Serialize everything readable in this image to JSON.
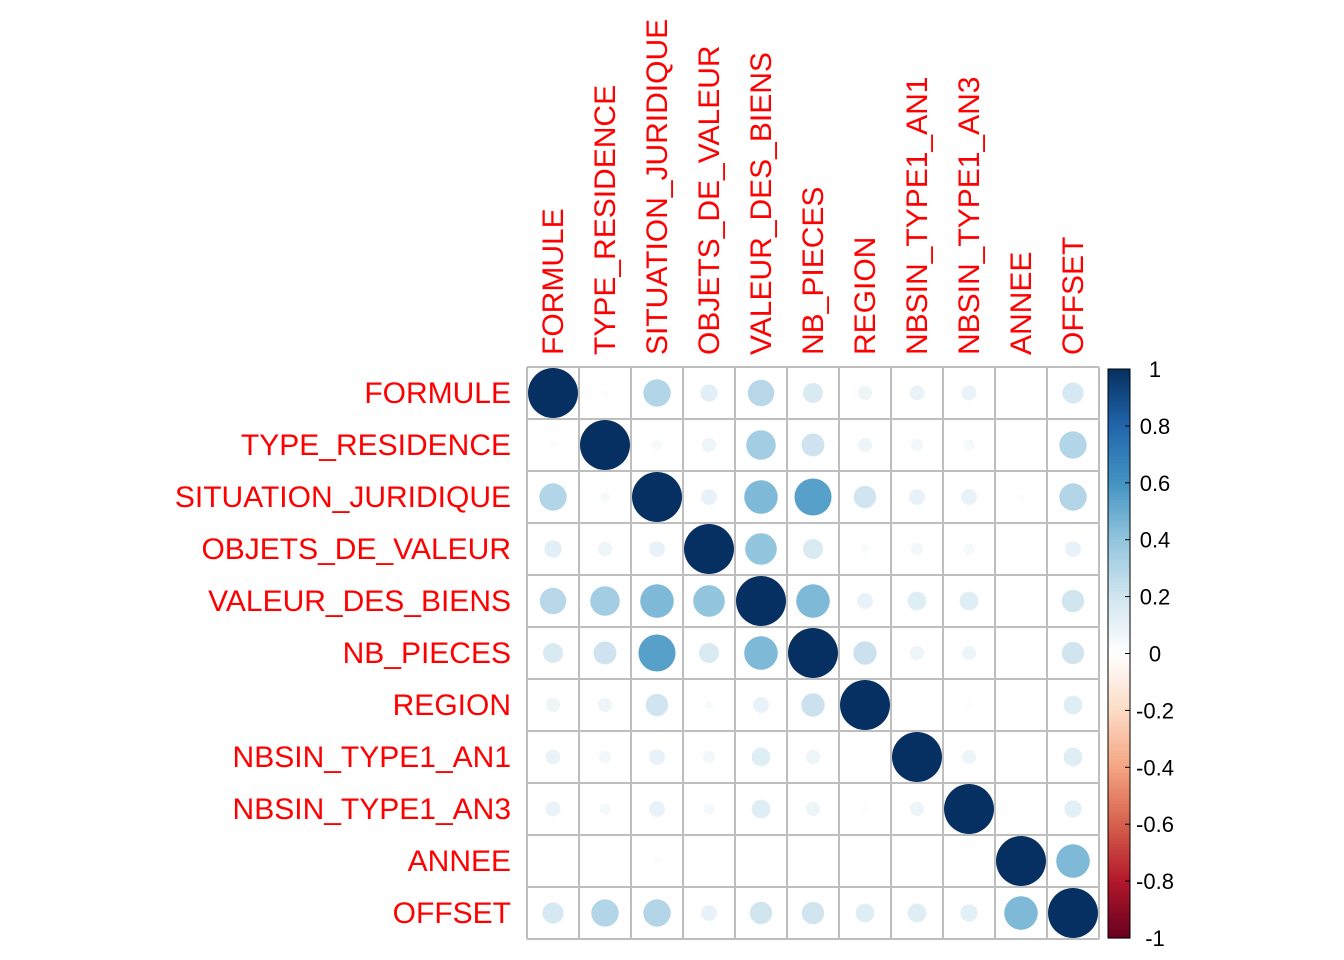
{
  "chart_data": {
    "type": "heatmap",
    "style": "corrplot-circle",
    "variables": [
      "FORMULE",
      "TYPE_RESIDENCE",
      "SITUATION_JURIDIQUE",
      "OBJETS_DE_VALEUR",
      "VALEUR_DES_BIENS",
      "NB_PIECES",
      "REGION",
      "NBSIN_TYPE1_AN1",
      "NBSIN_TYPE1_AN3",
      "ANNEE",
      "OFFSET"
    ],
    "matrix": [
      [
        1.0,
        0.02,
        0.3,
        0.12,
        0.28,
        0.16,
        0.08,
        0.09,
        0.09,
        0.01,
        0.18
      ],
      [
        0.02,
        1.0,
        0.04,
        0.08,
        0.35,
        0.21,
        0.08,
        0.06,
        0.05,
        0.01,
        0.3
      ],
      [
        0.3,
        0.04,
        1.0,
        0.1,
        0.45,
        0.55,
        0.2,
        0.1,
        0.1,
        0.02,
        0.3
      ],
      [
        0.12,
        0.08,
        0.1,
        1.0,
        0.4,
        0.16,
        0.03,
        0.06,
        0.05,
        0.0,
        0.1
      ],
      [
        0.28,
        0.35,
        0.45,
        0.4,
        1.0,
        0.45,
        0.1,
        0.14,
        0.14,
        0.01,
        0.2
      ],
      [
        0.16,
        0.21,
        0.55,
        0.16,
        0.45,
        1.0,
        0.22,
        0.08,
        0.08,
        0.01,
        0.2
      ],
      [
        0.08,
        0.08,
        0.2,
        0.03,
        0.1,
        0.22,
        1.0,
        0.01,
        0.02,
        0.0,
        0.14
      ],
      [
        0.09,
        0.06,
        0.1,
        0.06,
        0.14,
        0.08,
        0.01,
        1.0,
        0.08,
        0.0,
        0.14
      ],
      [
        0.09,
        0.05,
        0.1,
        0.05,
        0.14,
        0.08,
        0.02,
        0.08,
        1.0,
        0.01,
        0.12
      ],
      [
        0.01,
        0.01,
        0.02,
        0.0,
        0.01,
        0.01,
        0.0,
        0.0,
        0.01,
        1.0,
        0.45
      ],
      [
        0.18,
        0.3,
        0.3,
        0.1,
        0.2,
        0.2,
        0.14,
        0.14,
        0.12,
        0.45,
        1.0
      ]
    ],
    "color_scale": {
      "min": -1,
      "max": 1,
      "stops": [
        "#67001F",
        "#B2182B",
        "#D6604D",
        "#F4A582",
        "#FDDBC7",
        "#FFFFFF",
        "#D1E5F0",
        "#92C5DE",
        "#4393C3",
        "#2166AC",
        "#053061"
      ]
    },
    "colorbar_ticks": [
      "1",
      "0.8",
      "0.6",
      "0.4",
      "0.2",
      "0",
      "-0.2",
      "-0.4",
      "-0.6",
      "-0.8",
      "-1"
    ],
    "label_color": "#FF0000",
    "grid_color": "#BEBEBE",
    "legend_placement": "right"
  }
}
